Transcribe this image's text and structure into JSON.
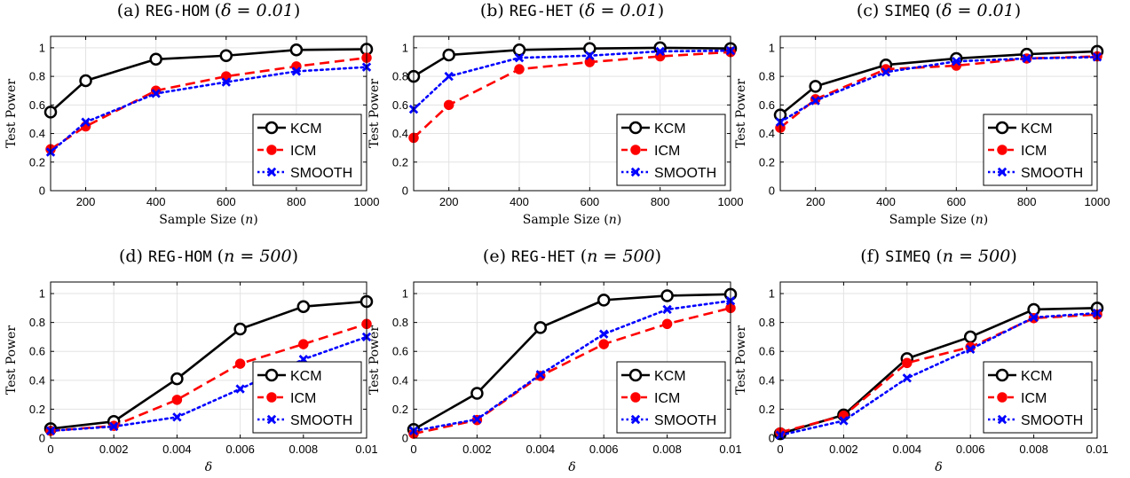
{
  "chart_data": [
    {
      "type": "line",
      "title": "(a) REG-HOM (δ = 0.01)",
      "title_parts": {
        "prefix": "(a) ",
        "code": "REG-HOM",
        "open": " (",
        "math": "δ = 0.01",
        "close": ")"
      },
      "xlabel": "Sample Size (n)",
      "xlabel_parts": {
        "text": "Sample Size (",
        "math": "n",
        "close": ")"
      },
      "ylabel": "Test Power",
      "x": [
        100,
        200,
        400,
        600,
        800,
        1000
      ],
      "xlim": [
        100,
        1000
      ],
      "xticks": [
        200,
        400,
        600,
        800,
        1000
      ],
      "xtick_labels": [
        "200",
        "400",
        "600",
        "800",
        "1000"
      ],
      "ylim": [
        0,
        1.08
      ],
      "yticks": [
        0,
        0.2,
        0.4,
        0.6,
        0.8,
        1
      ],
      "ytick_labels": [
        "0",
        "0.2",
        "0.4",
        "0.6",
        "0.8",
        "1"
      ],
      "grid": true,
      "legend_position": "bottom-right",
      "series": [
        {
          "name": "KCM",
          "values": [
            0.55,
            0.77,
            0.92,
            0.945,
            0.985,
            0.99
          ]
        },
        {
          "name": "ICM",
          "values": [
            0.29,
            0.45,
            0.7,
            0.8,
            0.87,
            0.93
          ]
        },
        {
          "name": "SMOOTH",
          "values": [
            0.27,
            0.48,
            0.68,
            0.76,
            0.835,
            0.865
          ]
        }
      ]
    },
    {
      "type": "line",
      "title": "(b) REG-HET (δ = 0.01)",
      "title_parts": {
        "prefix": "(b) ",
        "code": "REG-HET",
        "open": " (",
        "math": "δ = 0.01",
        "close": ")"
      },
      "xlabel": "Sample Size (n)",
      "xlabel_parts": {
        "text": "Sample Size (",
        "math": "n",
        "close": ")"
      },
      "ylabel": "Test Power",
      "x": [
        100,
        200,
        400,
        600,
        800,
        1000
      ],
      "xlim": [
        100,
        1000
      ],
      "xticks": [
        200,
        400,
        600,
        800,
        1000
      ],
      "xtick_labels": [
        "200",
        "400",
        "600",
        "800",
        "1000"
      ],
      "ylim": [
        0,
        1.08
      ],
      "yticks": [
        0,
        0.2,
        0.4,
        0.6,
        0.8,
        1
      ],
      "ytick_labels": [
        "0",
        "0.2",
        "0.4",
        "0.6",
        "0.8",
        "1"
      ],
      "grid": true,
      "legend_position": "bottom-right",
      "series": [
        {
          "name": "KCM",
          "values": [
            0.8,
            0.95,
            0.985,
            0.995,
            1.0,
            0.995
          ]
        },
        {
          "name": "ICM",
          "values": [
            0.37,
            0.6,
            0.85,
            0.9,
            0.94,
            0.97
          ]
        },
        {
          "name": "SMOOTH",
          "values": [
            0.57,
            0.8,
            0.93,
            0.945,
            0.975,
            0.98
          ]
        }
      ]
    },
    {
      "type": "line",
      "title": "(c) SIMEQ (δ = 0.01)",
      "title_parts": {
        "prefix": "(c) ",
        "code": "SIMEQ",
        "open": " (",
        "math": "δ = 0.01",
        "close": ")"
      },
      "xlabel": "Sample Size (n)",
      "xlabel_parts": {
        "text": "Sample Size (",
        "math": "n",
        "close": ")"
      },
      "ylabel": "Test Power",
      "x": [
        100,
        200,
        400,
        600,
        800,
        1000
      ],
      "xlim": [
        100,
        1000
      ],
      "xticks": [
        200,
        400,
        600,
        800,
        1000
      ],
      "xtick_labels": [
        "200",
        "400",
        "600",
        "800",
        "1000"
      ],
      "ylim": [
        0,
        1.08
      ],
      "yticks": [
        0,
        0.2,
        0.4,
        0.6,
        0.8,
        1
      ],
      "ytick_labels": [
        "0",
        "0.2",
        "0.4",
        "0.6",
        "0.8",
        "1"
      ],
      "grid": true,
      "legend_position": "bottom-right",
      "series": [
        {
          "name": "KCM",
          "values": [
            0.53,
            0.73,
            0.88,
            0.925,
            0.955,
            0.975
          ]
        },
        {
          "name": "ICM",
          "values": [
            0.44,
            0.64,
            0.85,
            0.875,
            0.925,
            0.94
          ]
        },
        {
          "name": "SMOOTH",
          "values": [
            0.48,
            0.63,
            0.83,
            0.905,
            0.925,
            0.935
          ]
        }
      ]
    },
    {
      "type": "line",
      "title": "(d) REG-HOM (n = 500)",
      "title_parts": {
        "prefix": "(d) ",
        "code": "REG-HOM",
        "open": " (",
        "math": "n = 500",
        "close": ")"
      },
      "xlabel": "δ",
      "xlabel_parts": {
        "text": "",
        "math": "δ",
        "close": ""
      },
      "ylabel": "Test Power",
      "x": [
        0,
        0.002,
        0.004,
        0.006,
        0.008,
        0.01
      ],
      "xlim": [
        0,
        0.01
      ],
      "xticks": [
        0,
        0.002,
        0.004,
        0.006,
        0.008,
        0.01
      ],
      "xtick_labels": [
        "0",
        "0.002",
        "0.004",
        "0.006",
        "0.008",
        "0.01"
      ],
      "ylim": [
        0,
        1.08
      ],
      "yticks": [
        0,
        0.2,
        0.4,
        0.6,
        0.8,
        1
      ],
      "ytick_labels": [
        "0",
        "0.2",
        "0.4",
        "0.6",
        "0.8",
        "1"
      ],
      "grid": true,
      "legend_position": "bottom-right",
      "series": [
        {
          "name": "KCM",
          "values": [
            0.065,
            0.115,
            0.41,
            0.755,
            0.91,
            0.945
          ]
        },
        {
          "name": "ICM",
          "values": [
            0.05,
            0.085,
            0.265,
            0.515,
            0.65,
            0.79
          ]
        },
        {
          "name": "SMOOTH",
          "values": [
            0.05,
            0.08,
            0.145,
            0.34,
            0.545,
            0.7
          ]
        }
      ]
    },
    {
      "type": "line",
      "title": "(e) REG-HET (n = 500)",
      "title_parts": {
        "prefix": "(e) ",
        "code": "REG-HET",
        "open": " (",
        "math": "n = 500",
        "close": ")"
      },
      "xlabel": "δ",
      "xlabel_parts": {
        "text": "",
        "math": "δ",
        "close": ""
      },
      "ylabel": "Test Power",
      "x": [
        0,
        0.002,
        0.004,
        0.006,
        0.008,
        0.01
      ],
      "xlim": [
        0,
        0.01
      ],
      "xticks": [
        0,
        0.002,
        0.004,
        0.006,
        0.008,
        0.01
      ],
      "xtick_labels": [
        "0",
        "0.002",
        "0.004",
        "0.006",
        "0.008",
        "0.01"
      ],
      "ylim": [
        0,
        1.08
      ],
      "yticks": [
        0,
        0.2,
        0.4,
        0.6,
        0.8,
        1
      ],
      "ytick_labels": [
        "0",
        "0.2",
        "0.4",
        "0.6",
        "0.8",
        "1"
      ],
      "grid": true,
      "legend_position": "bottom-right",
      "series": [
        {
          "name": "KCM",
          "values": [
            0.06,
            0.31,
            0.765,
            0.955,
            0.985,
            0.995
          ]
        },
        {
          "name": "ICM",
          "values": [
            0.03,
            0.125,
            0.43,
            0.65,
            0.79,
            0.9
          ]
        },
        {
          "name": "SMOOTH",
          "values": [
            0.05,
            0.13,
            0.44,
            0.72,
            0.89,
            0.95
          ]
        }
      ]
    },
    {
      "type": "line",
      "title": "(f) SIMEQ (n = 500)",
      "title_parts": {
        "prefix": "(f) ",
        "code": "SIMEQ",
        "open": " (",
        "math": "n = 500",
        "close": ")"
      },
      "xlabel": "δ",
      "xlabel_parts": {
        "text": "",
        "math": "δ",
        "close": ""
      },
      "ylabel": "Test Power",
      "x": [
        0,
        0.002,
        0.004,
        0.006,
        0.008,
        0.01
      ],
      "xlim": [
        0,
        0.01
      ],
      "xticks": [
        0,
        0.002,
        0.004,
        0.006,
        0.008,
        0.01
      ],
      "xtick_labels": [
        "0",
        "0.002",
        "0.004",
        "0.006",
        "0.008",
        "0.01"
      ],
      "ylim": [
        0,
        1.08
      ],
      "yticks": [
        0,
        0.2,
        0.4,
        0.6,
        0.8,
        1
      ],
      "ytick_labels": [
        "0",
        "0.2",
        "0.4",
        "0.6",
        "0.8",
        "1"
      ],
      "grid": true,
      "legend_position": "bottom-right",
      "series": [
        {
          "name": "KCM",
          "values": [
            0.03,
            0.16,
            0.55,
            0.7,
            0.89,
            0.9
          ]
        },
        {
          "name": "ICM",
          "values": [
            0.04,
            0.155,
            0.52,
            0.63,
            0.83,
            0.855
          ]
        },
        {
          "name": "SMOOTH",
          "values": [
            0.02,
            0.12,
            0.415,
            0.615,
            0.835,
            0.865
          ]
        }
      ]
    }
  ],
  "series_styles": [
    {
      "name": "KCM",
      "color": "#000000",
      "dash": "",
      "marker": "circle-icon"
    },
    {
      "name": "ICM",
      "color": "#ff0000",
      "dash": "dashed",
      "marker": "filled-circle-icon"
    },
    {
      "name": "SMOOTH",
      "color": "#0000ff",
      "dash": "dotted",
      "marker": "x-mark-icon"
    }
  ]
}
